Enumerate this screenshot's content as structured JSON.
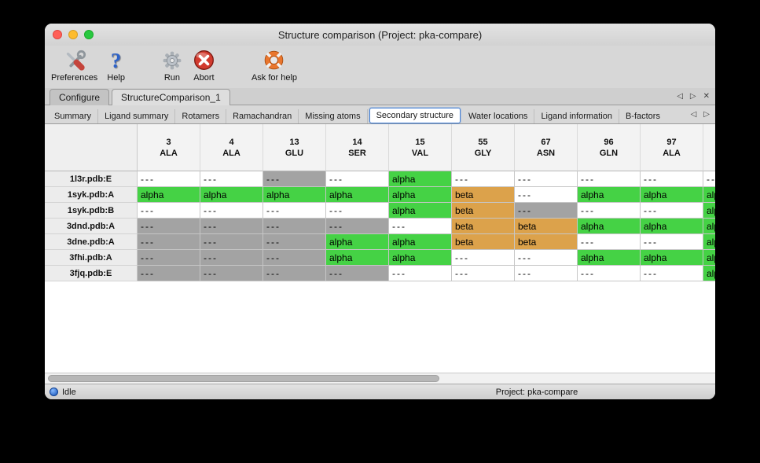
{
  "colors": {
    "alpha": "#45d245",
    "beta": "#dca24b",
    "gray": "#a3a3a3",
    "accent_blue": "#4a82d4"
  },
  "window": {
    "title": "Structure comparison (Project: pka-compare)",
    "controls": [
      "close",
      "minimize",
      "zoom"
    ]
  },
  "toolbar": {
    "items": [
      {
        "label": "Preferences",
        "icon": "tools-icon"
      },
      {
        "label": "Help",
        "icon": "question-icon"
      },
      {
        "label": "Run",
        "icon": "gear-icon"
      },
      {
        "label": "Abort",
        "icon": "abort-icon"
      },
      {
        "label": "Ask for help",
        "icon": "lifering-icon"
      }
    ]
  },
  "main_tabs": {
    "items": [
      {
        "label": "Configure",
        "active": false
      },
      {
        "label": "StructureComparison_1",
        "active": true
      }
    ],
    "nav": [
      {
        "name": "tab-scroll-left",
        "glyph": "left"
      },
      {
        "name": "tab-scroll-right",
        "glyph": "right"
      },
      {
        "name": "tab-close",
        "glyph": "close"
      }
    ]
  },
  "sub_tabs": {
    "items": [
      {
        "label": "Summary",
        "active": false
      },
      {
        "label": "Ligand summary",
        "active": false
      },
      {
        "label": "Rotamers",
        "active": false
      },
      {
        "label": "Ramachandran",
        "active": false
      },
      {
        "label": "Missing atoms",
        "active": false
      },
      {
        "label": "Secondary structure",
        "active": true
      },
      {
        "label": "Water locations",
        "active": false
      },
      {
        "label": "Ligand information",
        "active": false
      },
      {
        "label": "B-factors",
        "active": false
      }
    ],
    "nav": [
      {
        "name": "subtab-scroll-left",
        "glyph": "left"
      },
      {
        "name": "subtab-scroll-right",
        "glyph": "right"
      }
    ]
  },
  "table": {
    "columns": [
      {
        "num": "3",
        "res": "ALA"
      },
      {
        "num": "4",
        "res": "ALA"
      },
      {
        "num": "13",
        "res": "GLU"
      },
      {
        "num": "14",
        "res": "SER"
      },
      {
        "num": "15",
        "res": "VAL"
      },
      {
        "num": "55",
        "res": "GLY"
      },
      {
        "num": "67",
        "res": "ASN"
      },
      {
        "num": "96",
        "res": "GLN"
      },
      {
        "num": "97",
        "res": "ALA"
      },
      {
        "num": "",
        "res": ""
      }
    ],
    "rows": [
      {
        "label": "1l3r.pdb:E",
        "cells": [
          {
            "v": "---",
            "s": "white"
          },
          {
            "v": "---",
            "s": "white"
          },
          {
            "v": "---",
            "s": "gray"
          },
          {
            "v": "---",
            "s": "white"
          },
          {
            "v": "alpha",
            "s": "alpha"
          },
          {
            "v": "---",
            "s": "white"
          },
          {
            "v": "---",
            "s": "white"
          },
          {
            "v": "---",
            "s": "white"
          },
          {
            "v": "---",
            "s": "white"
          },
          {
            "v": "---",
            "s": "white"
          }
        ]
      },
      {
        "label": "1syk.pdb:A",
        "cells": [
          {
            "v": "alpha",
            "s": "alpha"
          },
          {
            "v": "alpha",
            "s": "alpha"
          },
          {
            "v": "alpha",
            "s": "alpha"
          },
          {
            "v": "alpha",
            "s": "alpha"
          },
          {
            "v": "alpha",
            "s": "alpha"
          },
          {
            "v": "beta",
            "s": "beta"
          },
          {
            "v": "---",
            "s": "white"
          },
          {
            "v": "alpha",
            "s": "alpha"
          },
          {
            "v": "alpha",
            "s": "alpha"
          },
          {
            "v": "alpha",
            "s": "alpha"
          }
        ]
      },
      {
        "label": "1syk.pdb:B",
        "cells": [
          {
            "v": "---",
            "s": "white"
          },
          {
            "v": "---",
            "s": "white"
          },
          {
            "v": "---",
            "s": "white"
          },
          {
            "v": "---",
            "s": "white"
          },
          {
            "v": "alpha",
            "s": "alpha"
          },
          {
            "v": "beta",
            "s": "beta"
          },
          {
            "v": "---",
            "s": "gray"
          },
          {
            "v": "---",
            "s": "white"
          },
          {
            "v": "---",
            "s": "white"
          },
          {
            "v": "alpha",
            "s": "alpha"
          }
        ]
      },
      {
        "label": "3dnd.pdb:A",
        "cells": [
          {
            "v": "---",
            "s": "gray"
          },
          {
            "v": "---",
            "s": "gray"
          },
          {
            "v": "---",
            "s": "gray"
          },
          {
            "v": "---",
            "s": "gray"
          },
          {
            "v": "---",
            "s": "white"
          },
          {
            "v": "beta",
            "s": "beta"
          },
          {
            "v": "beta",
            "s": "beta"
          },
          {
            "v": "alpha",
            "s": "alpha"
          },
          {
            "v": "alpha",
            "s": "alpha"
          },
          {
            "v": "alpha",
            "s": "alpha"
          }
        ]
      },
      {
        "label": "3dne.pdb:A",
        "cells": [
          {
            "v": "---",
            "s": "gray"
          },
          {
            "v": "---",
            "s": "gray"
          },
          {
            "v": "---",
            "s": "gray"
          },
          {
            "v": "alpha",
            "s": "alpha"
          },
          {
            "v": "alpha",
            "s": "alpha"
          },
          {
            "v": "beta",
            "s": "beta"
          },
          {
            "v": "beta",
            "s": "beta"
          },
          {
            "v": "---",
            "s": "white"
          },
          {
            "v": "---",
            "s": "white"
          },
          {
            "v": "alpha",
            "s": "alpha"
          }
        ]
      },
      {
        "label": "3fhi.pdb:A",
        "cells": [
          {
            "v": "---",
            "s": "gray"
          },
          {
            "v": "---",
            "s": "gray"
          },
          {
            "v": "---",
            "s": "gray"
          },
          {
            "v": "alpha",
            "s": "alpha"
          },
          {
            "v": "alpha",
            "s": "alpha"
          },
          {
            "v": "---",
            "s": "white"
          },
          {
            "v": "---",
            "s": "white"
          },
          {
            "v": "alpha",
            "s": "alpha"
          },
          {
            "v": "alpha",
            "s": "alpha"
          },
          {
            "v": "alpha",
            "s": "alpha"
          }
        ]
      },
      {
        "label": "3fjq.pdb:E",
        "cells": [
          {
            "v": "---",
            "s": "gray"
          },
          {
            "v": "---",
            "s": "gray"
          },
          {
            "v": "---",
            "s": "gray"
          },
          {
            "v": "---",
            "s": "gray"
          },
          {
            "v": "---",
            "s": "white"
          },
          {
            "v": "---",
            "s": "white"
          },
          {
            "v": "---",
            "s": "white"
          },
          {
            "v": "---",
            "s": "white"
          },
          {
            "v": "---",
            "s": "white"
          },
          {
            "v": "alpha",
            "s": "alpha"
          }
        ]
      }
    ]
  },
  "statusbar": {
    "status": "Idle",
    "project": "Project: pka-compare"
  }
}
